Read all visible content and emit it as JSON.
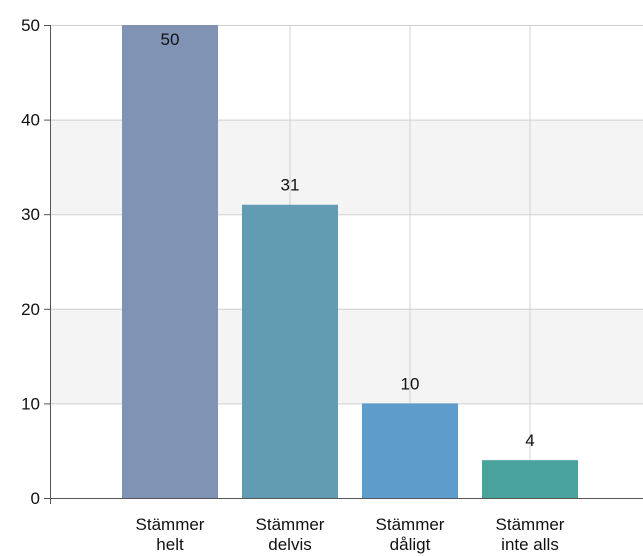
{
  "chart_data": {
    "type": "bar",
    "categories": [
      [
        "Stämmer",
        "helt"
      ],
      [
        "Stämmer",
        "delvis"
      ],
      [
        "Stämmer",
        "dåligt"
      ],
      [
        "Stämmer",
        "inte alls"
      ]
    ],
    "values": [
      50,
      31,
      10,
      4
    ],
    "data_labels": [
      "50",
      "31",
      "10",
      "4"
    ],
    "y_ticks": [
      "0",
      "10",
      "20",
      "30",
      "40",
      "50"
    ],
    "ylim": [
      0,
      50
    ],
    "grid": true,
    "banded_background": true,
    "colors": [
      "#8193b5",
      "#629cb2",
      "#5e9ccb",
      "#4aa29c"
    ],
    "band_color": "#f4f4f4",
    "grid_color": "#d0d0d0",
    "axis_color": "#555555"
  }
}
